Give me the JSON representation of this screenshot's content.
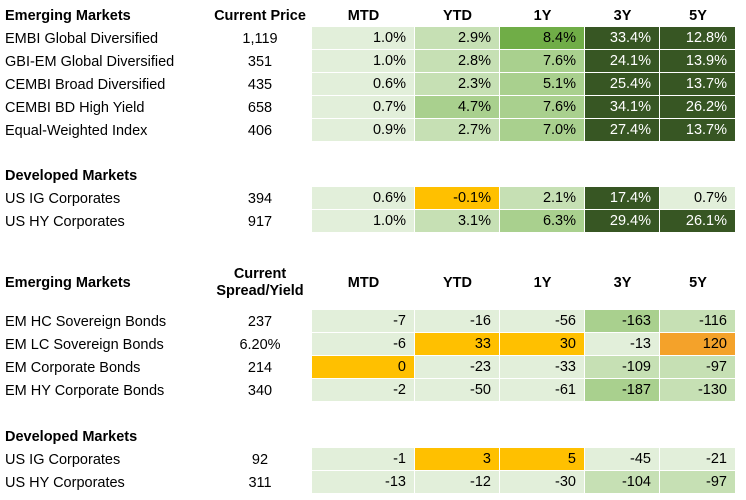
{
  "columns": [
    "MTD",
    "YTD",
    "1Y",
    "3Y",
    "5Y"
  ],
  "colors": {
    "very_light_green": "#e2efda",
    "light_green": "#c6e0b4",
    "mid_green": "#a9d08e",
    "green": "#70ad47",
    "dark_green": "#375623",
    "yellow": "#ffc000",
    "orange": "#f4a22a"
  },
  "returns": {
    "section_em": {
      "title": "Emerging Markets",
      "price_header": "Current Price",
      "rows": [
        {
          "name": "EMBI Global Diversified",
          "price": "1,119",
          "values": [
            "1.0%",
            "2.9%",
            "8.4%",
            "33.4%",
            "12.8%"
          ],
          "fills": [
            "very_light_green",
            "light_green",
            "green",
            "dark_green",
            "dark_green"
          ],
          "light_text": [
            false,
            false,
            false,
            true,
            true
          ]
        },
        {
          "name": "GBI-EM Global Diversified",
          "price": "351",
          "values": [
            "1.0%",
            "2.8%",
            "7.6%",
            "24.1%",
            "13.9%"
          ],
          "fills": [
            "very_light_green",
            "light_green",
            "mid_green",
            "dark_green",
            "dark_green"
          ],
          "light_text": [
            false,
            false,
            false,
            true,
            true
          ]
        },
        {
          "name": "CEMBI Broad Diversified",
          "price": "435",
          "values": [
            "0.6%",
            "2.3%",
            "5.1%",
            "25.4%",
            "13.7%"
          ],
          "fills": [
            "very_light_green",
            "light_green",
            "mid_green",
            "dark_green",
            "dark_green"
          ],
          "light_text": [
            false,
            false,
            false,
            true,
            true
          ]
        },
        {
          "name": "CEMBI BD High Yield",
          "price": "658",
          "values": [
            "0.7%",
            "4.7%",
            "7.6%",
            "34.1%",
            "26.2%"
          ],
          "fills": [
            "very_light_green",
            "mid_green",
            "mid_green",
            "dark_green",
            "dark_green"
          ],
          "light_text": [
            false,
            false,
            false,
            true,
            true
          ]
        },
        {
          "name": "Equal-Weighted Index",
          "price": "406",
          "values": [
            "0.9%",
            "2.7%",
            "7.0%",
            "27.4%",
            "13.7%"
          ],
          "fills": [
            "very_light_green",
            "light_green",
            "mid_green",
            "dark_green",
            "dark_green"
          ],
          "light_text": [
            false,
            false,
            false,
            true,
            true
          ]
        }
      ]
    },
    "section_dm": {
      "title": "Developed Markets",
      "rows": [
        {
          "name": "US IG Corporates",
          "price": "394",
          "values": [
            "0.6%",
            "-0.1%",
            "2.1%",
            "17.4%",
            "0.7%"
          ],
          "fills": [
            "very_light_green",
            "yellow",
            "light_green",
            "dark_green",
            "very_light_green"
          ],
          "light_text": [
            false,
            false,
            false,
            true,
            false
          ]
        },
        {
          "name": "US HY Corporates",
          "price": "917",
          "values": [
            "1.0%",
            "3.1%",
            "6.3%",
            "29.4%",
            "26.1%"
          ],
          "fills": [
            "very_light_green",
            "light_green",
            "mid_green",
            "dark_green",
            "dark_green"
          ],
          "light_text": [
            false,
            false,
            false,
            true,
            true
          ]
        }
      ]
    }
  },
  "spreads": {
    "section_em": {
      "title": "Emerging Markets",
      "header_line1": "Current",
      "header_line2": "Spread/Yield",
      "rows": [
        {
          "name": "EM HC Sovereign Bonds",
          "price": "237",
          "values": [
            "-7",
            "-16",
            "-56",
            "-163",
            "-116"
          ],
          "fills": [
            "very_light_green",
            "very_light_green",
            "very_light_green",
            "mid_green",
            "light_green"
          ],
          "light_text": [
            false,
            false,
            false,
            false,
            false
          ]
        },
        {
          "name": "EM LC Sovereign Bonds",
          "price": "6.20%",
          "values": [
            "-6",
            "33",
            "30",
            "-13",
            "120"
          ],
          "fills": [
            "very_light_green",
            "yellow",
            "yellow",
            "very_light_green",
            "orange"
          ],
          "light_text": [
            false,
            false,
            false,
            false,
            false
          ]
        },
        {
          "name": "EM Corporate Bonds",
          "price": "214",
          "values": [
            "0",
            "-23",
            "-33",
            "-109",
            "-97"
          ],
          "fills": [
            "yellow",
            "very_light_green",
            "very_light_green",
            "light_green",
            "light_green"
          ],
          "light_text": [
            false,
            false,
            false,
            false,
            false
          ]
        },
        {
          "name": "EM HY Corporate Bonds",
          "price": "340",
          "values": [
            "-2",
            "-50",
            "-61",
            "-187",
            "-130"
          ],
          "fills": [
            "very_light_green",
            "very_light_green",
            "very_light_green",
            "mid_green",
            "light_green"
          ],
          "light_text": [
            false,
            false,
            false,
            false,
            false
          ]
        }
      ]
    },
    "section_dm": {
      "title": "Developed Markets",
      "rows": [
        {
          "name": "US IG Corporates",
          "price": "92",
          "values": [
            "-1",
            "3",
            "5",
            "-45",
            "-21"
          ],
          "fills": [
            "very_light_green",
            "yellow",
            "yellow",
            "very_light_green",
            "very_light_green"
          ],
          "light_text": [
            false,
            false,
            false,
            false,
            false
          ]
        },
        {
          "name": "US HY Corporates",
          "price": "311",
          "values": [
            "-13",
            "-12",
            "-30",
            "-104",
            "-97"
          ],
          "fills": [
            "very_light_green",
            "very_light_green",
            "very_light_green",
            "light_green",
            "light_green"
          ],
          "light_text": [
            false,
            false,
            false,
            false,
            false
          ]
        }
      ]
    }
  }
}
